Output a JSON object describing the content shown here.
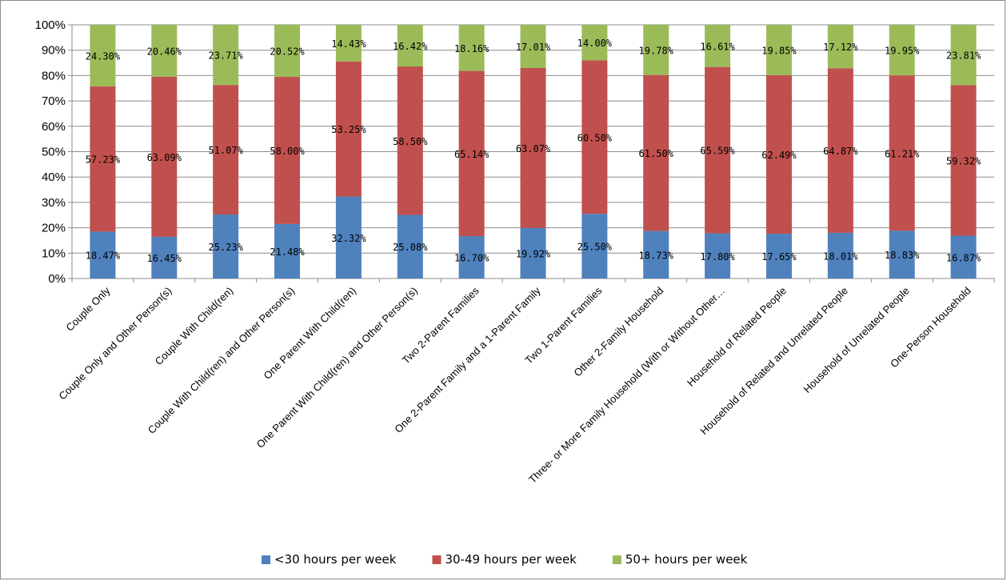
{
  "chart_data": {
    "type": "bar",
    "stacked": true,
    "percent_stacked": true,
    "title": "",
    "xlabel": "",
    "ylabel": "",
    "ylim": [
      0,
      100
    ],
    "y_ticks": [
      "0%",
      "10%",
      "20%",
      "30%",
      "40%",
      "50%",
      "60%",
      "70%",
      "80%",
      "90%",
      "100%"
    ],
    "grid": "horizontal",
    "legend_position": "bottom",
    "categories": [
      "Couple Only",
      "Couple Only and Other Person(s)",
      "Couple With Child(ren)",
      "Couple With Child(ren)  and Other Person(s)",
      "One Parent With Child(ren)",
      "One Parent With Child(ren)  and Other Person(s)",
      "Two 2-Parent Families",
      "One 2-Parent Family and a 1-Parent Family",
      "Two 1-Parent Families",
      "Other 2-Family Household",
      "Three- or More Family Household (With or Without Other…",
      "Household of Related People",
      "Household of Related and Unrelated People",
      "Household of Unrelated People",
      "One-Person Household"
    ],
    "series": [
      {
        "name": "<30 hours per week",
        "color": "#4f81bd",
        "values": [
          18.47,
          16.45,
          25.23,
          21.48,
          32.32,
          25.08,
          16.7,
          19.92,
          25.5,
          18.73,
          17.8,
          17.65,
          18.01,
          18.83,
          16.87
        ],
        "labels": [
          "18.47%",
          "16.45%",
          "25.23%",
          "21.48%",
          "32.32%",
          "25.08%",
          "16.70%",
          "19.92%",
          "25.50%",
          "18.73%",
          "17.80%",
          "17.65%",
          "18.01%",
          "18.83%",
          "16.87%"
        ]
      },
      {
        "name": "30-49 hours per week",
        "color": "#c0504d",
        "values": [
          57.23,
          63.09,
          51.07,
          58.0,
          53.25,
          58.5,
          65.14,
          63.07,
          60.5,
          61.5,
          65.59,
          62.49,
          64.87,
          61.21,
          59.32
        ],
        "labels": [
          "57.23%",
          "63.09%",
          "51.07%",
          "58.00%",
          "53.25%",
          "58.50%",
          "65.14%",
          "63.07%",
          "60.50%",
          "61.50%",
          "65.59%",
          "62.49%",
          "64.87%",
          "61.21%",
          "59.32%"
        ]
      },
      {
        "name": "50+ hours per week",
        "color": "#9bbb59",
        "values": [
          24.3,
          20.46,
          23.71,
          20.52,
          14.43,
          16.42,
          18.16,
          17.01,
          14.0,
          19.78,
          16.61,
          19.85,
          17.12,
          19.95,
          23.81
        ],
        "labels": [
          "24.30%",
          "20.46%",
          "23.71%",
          "20.52%",
          "14.43%",
          "16.42%",
          "18.16%",
          "17.01%",
          "14.00%",
          "19.78%",
          "16.61%",
          "19.85%",
          "17.12%",
          "19.95%",
          "23.81%"
        ]
      }
    ]
  }
}
